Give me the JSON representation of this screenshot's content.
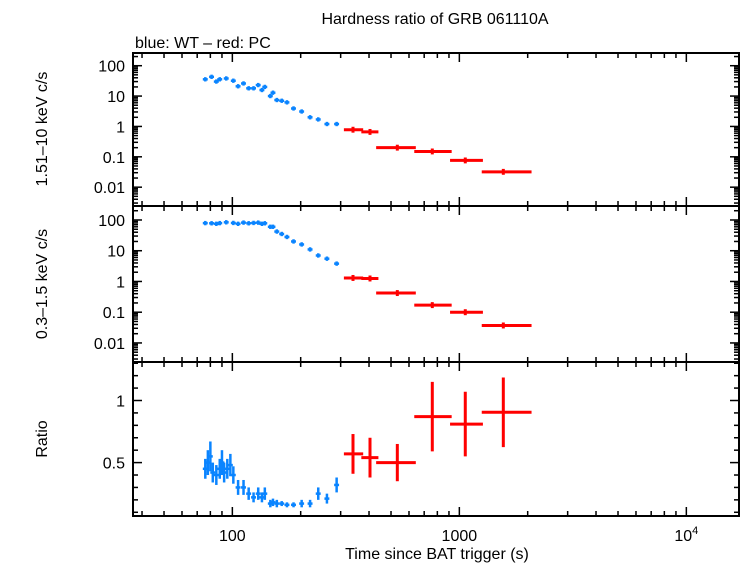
{
  "chart_data": {
    "type": "scatter",
    "title": "Hardness ratio of GRB 061110A",
    "subtitle": "blue: WT – red: PC",
    "xlabel": "Time since BAT trigger (s)",
    "xscale": "log",
    "xlim": [
      36.5,
      17060
    ],
    "xticks": [
      {
        "v": 100,
        "label": "100"
      },
      {
        "v": 1000,
        "label": "1000"
      },
      {
        "v": 10000,
        "label": "10",
        "sup": "4"
      }
    ],
    "colors": {
      "WT": "#0a84ff",
      "PC": "#ff0000"
    },
    "grid": false,
    "panels": [
      {
        "ylabel": "1.51–10 keV c/s",
        "yscale": "log",
        "ylim": [
          0.0024,
          262
        ],
        "yticks": [
          {
            "v": 100,
            "label": "100"
          },
          {
            "v": 10,
            "label": "10"
          },
          {
            "v": 1,
            "label": "1"
          },
          {
            "v": 0.1,
            "label": "0.1"
          },
          {
            "v": 0.01,
            "label": "0.01"
          }
        ],
        "series": [
          {
            "mode": "WT",
            "x": [
              76,
              81,
              85,
              88,
              94,
              101,
              106,
              112,
              118,
              124,
              130,
              135,
              139,
              147,
              151,
              157,
              165,
              174,
              186,
              202,
              220,
              239,
              261,
              288
            ],
            "y": [
              35.6,
              43,
              30,
              35.6,
              38,
              32,
              21,
              26,
              18,
              18,
              23,
              15.8,
              20,
              10,
              12.9,
              7.4,
              7,
              6.2,
              3.9,
              3.1,
              2.0,
              1.7,
              1.2,
              1.2
            ]
          },
          {
            "mode": "PC",
            "x": [
              340,
              404,
              533,
              760,
              1062,
              1562
            ],
            "xlo": [
              310,
              370,
              430,
              633,
              910,
              1255
            ],
            "xhi": [
              377,
              440,
              643,
              925,
              1270,
              2080
            ],
            "y": [
              0.78,
              0.66,
              0.2,
              0.15,
              0.076,
              0.032
            ]
          }
        ]
      },
      {
        "ylabel": "0.3–1.5 keV c/s",
        "yscale": "log",
        "ylim": [
          0.0024,
          285
        ],
        "yticks": [
          {
            "v": 100,
            "label": "100"
          },
          {
            "v": 10,
            "label": "10"
          },
          {
            "v": 1,
            "label": "1"
          },
          {
            "v": 0.1,
            "label": "0.1"
          },
          {
            "v": 0.01,
            "label": "0.01"
          }
        ],
        "series": [
          {
            "mode": "WT",
            "x": [
              76,
              81,
              85,
              88,
              94,
              101,
              106,
              112,
              118,
              124,
              130,
              135,
              139,
              147,
              151,
              157,
              165,
              174,
              186,
              202,
              220,
              239,
              261,
              288
            ],
            "y": [
              79,
              78,
              75,
              79,
              84,
              80,
              75,
              82,
              78,
              80,
              82,
              75,
              78,
              60,
              60,
              42,
              35,
              28,
              20,
              16,
              11,
              7,
              5.5,
              3.8
            ]
          },
          {
            "mode": "PC",
            "x": [
              340,
              404,
              533,
              760,
              1062,
              1562
            ],
            "xlo": [
              310,
              370,
              430,
              633,
              910,
              1255
            ],
            "xhi": [
              377,
              440,
              643,
              925,
              1270,
              2080
            ],
            "y": [
              1.3,
              1.25,
              0.42,
              0.17,
              0.1,
              0.037
            ]
          }
        ]
      },
      {
        "ylabel": "Ratio",
        "yscale": "linear",
        "ylim": [
          0.07,
          1.31
        ],
        "yticks": [
          {
            "v": 1,
            "label": "1"
          },
          {
            "v": 0.5,
            "label": "0.5"
          }
        ],
        "series": [
          {
            "mode": "WT",
            "x": [
              76,
              78,
              80,
              82,
              85,
              88,
              90,
              92,
              95,
              98,
              101,
              106,
              112,
              118,
              124,
              130,
              135,
              139,
              147,
              151,
              157,
              165,
              174,
              186,
              202,
              220,
              239,
              261,
              288
            ],
            "y": [
              0.45,
              0.5,
              0.55,
              0.42,
              0.4,
              0.45,
              0.5,
              0.42,
              0.45,
              0.48,
              0.4,
              0.3,
              0.3,
              0.25,
              0.22,
              0.25,
              0.22,
              0.25,
              0.17,
              0.18,
              0.17,
              0.17,
              0.16,
              0.16,
              0.17,
              0.17,
              0.25,
              0.21,
              0.32
            ],
            "yerr": [
              0.08,
              0.1,
              0.12,
              0.08,
              0.08,
              0.08,
              0.1,
              0.08,
              0.08,
              0.09,
              0.07,
              0.06,
              0.06,
              0.05,
              0.04,
              0.05,
              0.04,
              0.05,
              0.03,
              0.03,
              0.03,
              0.02,
              0.02,
              0.02,
              0.03,
              0.03,
              0.05,
              0.04,
              0.06
            ]
          },
          {
            "mode": "PC",
            "x": [
              340,
              404,
              533,
              760,
              1062,
              1562
            ],
            "xlo": [
              310,
              370,
              430,
              633,
              910,
              1255
            ],
            "xhi": [
              377,
              440,
              643,
              925,
              1270,
              2080
            ],
            "y": [
              0.57,
              0.54,
              0.5,
              0.87,
              0.81,
              0.905
            ],
            "yerr": [
              0.16,
              0.16,
              0.15,
              0.28,
              0.26,
              0.28
            ]
          }
        ]
      }
    ]
  }
}
